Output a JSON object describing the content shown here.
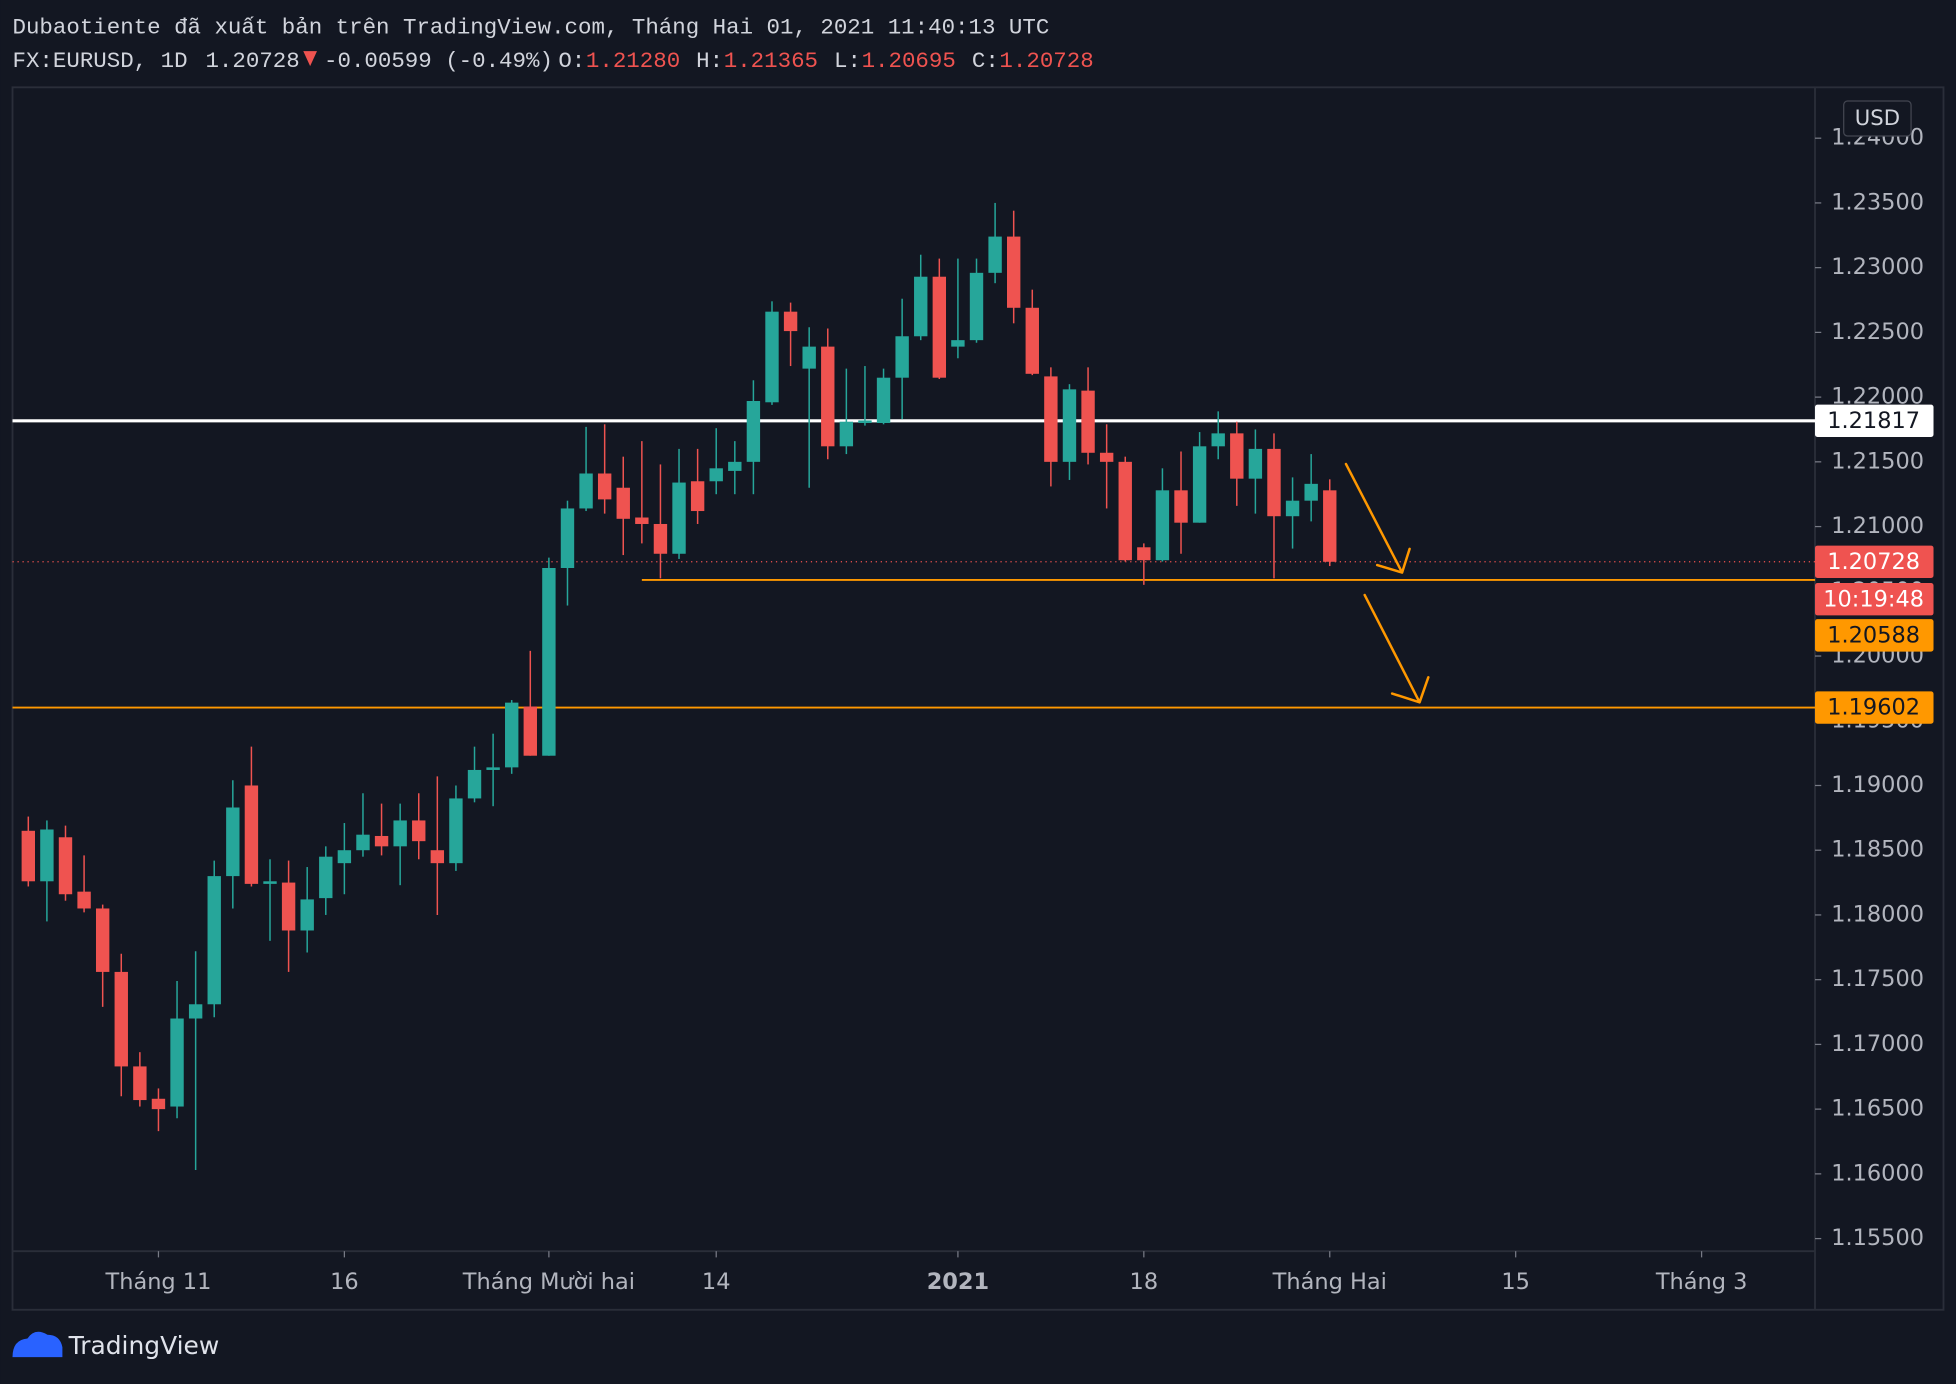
{
  "header": {
    "title": "Dubaotiente đã xuất bản trên TradingView.com, Tháng Hai 01, 2021 11:40:13 UTC",
    "symbol": "FX:EURUSD, 1D",
    "last": "1.20728",
    "change": "-0.00599 (-0.49%)",
    "ohlc": [
      {
        "label": "O:",
        "value": "1.21280"
      },
      {
        "label": "H:",
        "value": "1.21365"
      },
      {
        "label": "L:",
        "value": "1.20695"
      },
      {
        "label": "C:",
        "value": "1.20728"
      }
    ]
  },
  "chart_data": {
    "type": "candlestick",
    "open": [
      1.1865,
      1.1826,
      1.186,
      1.1818,
      1.1805,
      1.1756,
      1.1683,
      1.1658,
      1.1652,
      1.172,
      1.1731,
      1.183,
      1.19,
      1.1824,
      1.1825,
      1.1788,
      1.1813,
      1.184,
      1.185,
      1.1861,
      1.1853,
      1.1873,
      1.185,
      1.184,
      1.189,
      1.1912,
      1.1914,
      1.1961,
      1.1923,
      1.2068,
      1.2114,
      1.2141,
      1.213,
      1.2107,
      1.2102,
      1.2079,
      1.2135,
      1.2135,
      1.2143,
      1.215,
      1.2196,
      1.2266,
      1.2222,
      1.2239,
      1.2162,
      1.218,
      1.218,
      1.2215,
      1.2247,
      1.2293,
      1.2239,
      1.2244,
      1.2296,
      1.2324,
      1.2269,
      1.2216,
      1.215,
      1.2205,
      1.2157,
      1.215,
      1.2084,
      1.2074,
      1.2128,
      1.2103,
      1.2162,
      1.2172,
      1.2137,
      1.216,
      1.2108,
      1.212,
      1.2128
    ],
    "high": [
      1.1876,
      1.1873,
      1.1869,
      1.1846,
      1.1808,
      1.177,
      1.1694,
      1.1666,
      1.1749,
      1.1772,
      1.1842,
      1.1904,
      1.193,
      1.1843,
      1.1842,
      1.1837,
      1.1853,
      1.1871,
      1.1894,
      1.1886,
      1.1886,
      1.1894,
      1.1907,
      1.19,
      1.193,
      1.194,
      1.1966,
      1.2004,
      1.2076,
      1.212,
      1.2177,
      1.2179,
      1.2154,
      1.2166,
      1.2148,
      1.216,
      1.216,
      1.2176,
      1.2166,
      1.2213,
      1.2274,
      1.2273,
      1.2254,
      1.2253,
      1.2222,
      1.2224,
      1.2222,
      1.2276,
      1.231,
      1.2307,
      1.2307,
      1.2307,
      1.235,
      1.2344,
      1.2283,
      1.2223,
      1.221,
      1.2223,
      1.2179,
      1.2154,
      1.2087,
      1.2145,
      1.2158,
      1.2173,
      1.2189,
      1.2181,
      1.2175,
      1.2172,
      1.2138,
      1.2156,
      1.21365
    ],
    "low": [
      1.1822,
      1.1795,
      1.1811,
      1.1802,
      1.1729,
      1.166,
      1.1652,
      1.1633,
      1.1643,
      1.1603,
      1.1721,
      1.1805,
      1.1822,
      1.178,
      1.1756,
      1.1771,
      1.18,
      1.1816,
      1.1845,
      1.1846,
      1.1823,
      1.1843,
      1.18,
      1.1834,
      1.1887,
      1.1884,
      1.1909,
      1.1923,
      1.1923,
      1.2039,
      1.2112,
      1.211,
      1.2078,
      1.2087,
      1.206,
      1.2075,
      1.2102,
      1.2125,
      1.2125,
      1.2125,
      1.2194,
      1.2224,
      1.213,
      1.2152,
      1.2156,
      1.2178,
      1.2179,
      1.2183,
      1.2244,
      1.2214,
      1.223,
      1.2242,
      1.2288,
      1.2257,
      1.2217,
      1.2131,
      1.2136,
      1.2148,
      1.2114,
      1.2073,
      1.2055,
      1.2073,
      1.2079,
      1.2103,
      1.2152,
      1.2116,
      1.211,
      1.206,
      1.2083,
      1.2104,
      1.20695
    ],
    "close": [
      1.1826,
      1.1866,
      1.1816,
      1.1805,
      1.1756,
      1.1683,
      1.1657,
      1.165,
      1.172,
      1.1731,
      1.183,
      1.1883,
      1.1824,
      1.1826,
      1.1788,
      1.1812,
      1.1845,
      1.185,
      1.1862,
      1.1853,
      1.1873,
      1.1857,
      1.184,
      1.189,
      1.1912,
      1.1914,
      1.1964,
      1.1923,
      1.2068,
      1.2114,
      1.2141,
      1.2121,
      1.2106,
      1.2102,
      1.2079,
      1.2134,
      1.2112,
      1.2145,
      1.215,
      1.2197,
      1.2266,
      1.2251,
      1.2239,
      1.2162,
      1.2181,
      1.2182,
      1.2215,
      1.2247,
      1.2293,
      1.2215,
      1.2244,
      1.2296,
      1.2324,
      1.2269,
      1.2218,
      1.215,
      1.2206,
      1.2157,
      1.215,
      1.2074,
      1.2074,
      1.2128,
      1.2103,
      1.2162,
      1.2172,
      1.2137,
      1.216,
      1.2108,
      1.212,
      1.2133,
      1.20728
    ],
    "up_color": "#26a69a",
    "down_color": "#ef5350",
    "xlim": [
      -0.85,
      96.1
    ],
    "xticks": [
      {
        "value": 7,
        "label": "Tháng 11"
      },
      {
        "value": 17,
        "label": "16"
      },
      {
        "value": 28,
        "label": "Tháng Mười hai"
      },
      {
        "value": 37,
        "label": "14"
      },
      {
        "value": 50,
        "label": "2021"
      },
      {
        "value": 60,
        "label": "18"
      },
      {
        "value": 70,
        "label": "Tháng Hai"
      },
      {
        "value": 80,
        "label": "15"
      },
      {
        "value": 90,
        "label": "Tháng 3"
      }
    ],
    "ylim": [
      1.15403,
      1.24393
    ],
    "yticks": [
      {
        "value": 1.155,
        "label": "1.15500"
      },
      {
        "value": 1.16,
        "label": "1.16000"
      },
      {
        "value": 1.165,
        "label": "1.16500"
      },
      {
        "value": 1.17,
        "label": "1.17000"
      },
      {
        "value": 1.175,
        "label": "1.17500"
      },
      {
        "value": 1.18,
        "label": "1.18000"
      },
      {
        "value": 1.185,
        "label": "1.18500"
      },
      {
        "value": 1.19,
        "label": "1.19000"
      },
      {
        "value": 1.195,
        "label": "1.19500"
      },
      {
        "value": 1.2,
        "label": "1.20000"
      },
      {
        "value": 1.205,
        "label": "1.20500"
      },
      {
        "value": 1.21,
        "label": "1.21000"
      },
      {
        "value": 1.215,
        "label": "1.21500"
      },
      {
        "value": 1.22,
        "label": "1.22000"
      },
      {
        "value": 1.225,
        "label": "1.22500"
      },
      {
        "value": 1.23,
        "label": "1.23000"
      },
      {
        "value": 1.235,
        "label": "1.23500"
      },
      {
        "value": 1.24,
        "label": "1.24000"
      }
    ],
    "currency": "USD",
    "levels": [
      {
        "value": 1.21817,
        "color": "#ffffff"
      },
      {
        "value": 1.20588,
        "color": "#ff9800",
        "start": 33
      },
      {
        "value": 1.19602,
        "color": "#ff9800"
      }
    ],
    "last_price": 1.20728,
    "last_color": "#ef5350",
    "countdown": "10:19:48"
  },
  "logo": "TradingView"
}
